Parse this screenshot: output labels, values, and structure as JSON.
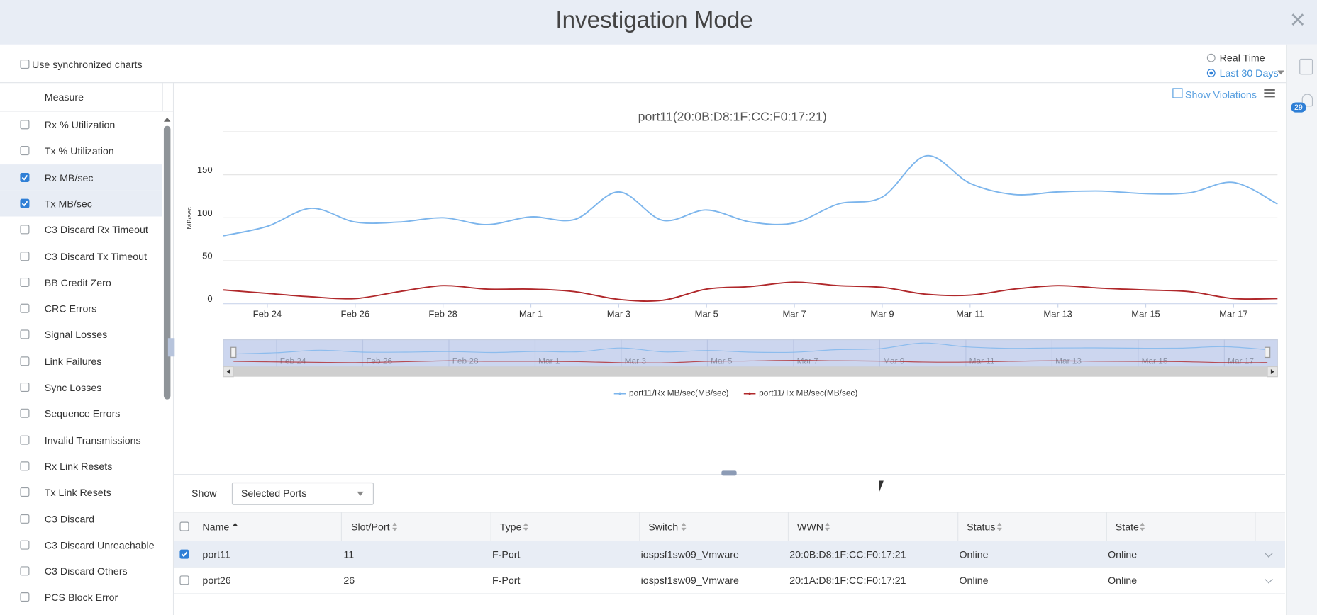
{
  "header": {
    "title": "Investigation Mode"
  },
  "options": {
    "sync_label": "Use synchronized charts",
    "real_time": "Real Time",
    "last_30_days": "Last 30 Days"
  },
  "notifications": {
    "count": "29"
  },
  "sidebar": {
    "header": "Measure",
    "items": [
      {
        "label": "Rx % Utilization",
        "checked": false
      },
      {
        "label": "Tx % Utilization",
        "checked": false
      },
      {
        "label": "Rx MB/sec",
        "checked": true
      },
      {
        "label": "Tx MB/sec",
        "checked": true
      },
      {
        "label": "C3 Discard Rx Timeout",
        "checked": false
      },
      {
        "label": "C3 Discard Tx Timeout",
        "checked": false
      },
      {
        "label": "BB Credit Zero",
        "checked": false
      },
      {
        "label": "CRC Errors",
        "checked": false
      },
      {
        "label": "Signal Losses",
        "checked": false
      },
      {
        "label": "Link Failures",
        "checked": false
      },
      {
        "label": "Sync Losses",
        "checked": false
      },
      {
        "label": "Sequence Errors",
        "checked": false
      },
      {
        "label": "Invalid Transmissions",
        "checked": false
      },
      {
        "label": "Rx Link Resets",
        "checked": false
      },
      {
        "label": "Tx Link Resets",
        "checked": false
      },
      {
        "label": "C3 Discard",
        "checked": false
      },
      {
        "label": "C3 Discard Unreachable",
        "checked": false
      },
      {
        "label": "C3 Discard Others",
        "checked": false
      },
      {
        "label": "PCS Block Error",
        "checked": false
      }
    ]
  },
  "chart_toolbar": {
    "show_violations": "Show Violations"
  },
  "chart_data": {
    "type": "line",
    "title": "port11(20:0B:D8:1F:CC:F0:17:21)",
    "y_label": "MB/sec",
    "categories": [
      null,
      "Feb 24",
      null,
      "Feb 26",
      null,
      "Feb 28",
      null,
      "Mar 1",
      null,
      "Mar 3",
      null,
      "Mar 5",
      null,
      "Mar 7",
      null,
      "Mar 9",
      null,
      "Mar 11",
      null,
      "Mar 13",
      null,
      "Mar 15",
      null,
      "Mar 17",
      null
    ],
    "series": [
      {
        "name": "port11/Rx MB/sec(MB/sec)",
        "color": "#7cb5ec",
        "values": [
          79,
          90,
          111,
          95,
          95,
          100,
          92,
          101,
          98,
          130,
          97,
          109,
          95,
          94,
          116,
          124,
          172,
          140,
          127,
          130,
          131,
          128,
          129,
          141,
          116
        ]
      },
      {
        "name": "port11/Tx MB/sec(MB/sec)",
        "color": "#b0282b",
        "values": [
          16,
          12,
          8,
          6,
          14,
          21,
          17,
          17,
          14,
          5,
          4,
          17,
          20,
          25,
          21,
          19,
          11,
          10,
          17,
          21,
          18,
          16,
          14,
          6,
          6
        ]
      }
    ],
    "ylim": [
      0,
      200
    ],
    "yticks": [
      0,
      50,
      100,
      150
    ],
    "grid": true,
    "legend": "bottom"
  },
  "table": {
    "show_label": "Show",
    "filter": "Selected Ports",
    "columns": [
      "Name",
      "Slot/Port",
      "Type",
      "Switch",
      "WWN",
      "Status",
      "State"
    ],
    "rows": [
      [
        "port11",
        "11",
        "F-Port",
        "iospsf1sw09_Vmware",
        "20:0B:D8:1F:CC:F0:17:21",
        "Online",
        "Online"
      ],
      [
        "port26",
        "26",
        "F-Port",
        "iospsf1sw09_Vmware",
        "20:1A:D8:1F:CC:F0:17:21",
        "Online",
        "Online"
      ]
    ],
    "checked": [
      true,
      false
    ]
  }
}
